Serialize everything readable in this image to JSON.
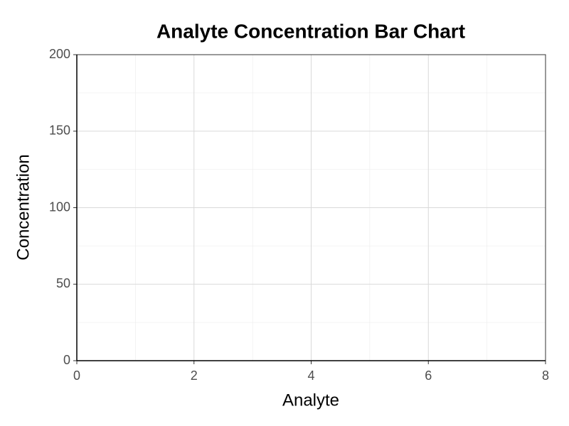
{
  "chart_data": {
    "type": "bar",
    "title": "Analyte Concentration Bar Chart",
    "xlabel": "Analyte",
    "ylabel": "Concentration",
    "xlim": [
      0,
      8
    ],
    "xticks": [
      0,
      2,
      4,
      6,
      8
    ],
    "ylim": [
      0,
      200
    ],
    "yticks": [
      0,
      50,
      100,
      150,
      200
    ],
    "grid": true
  }
}
